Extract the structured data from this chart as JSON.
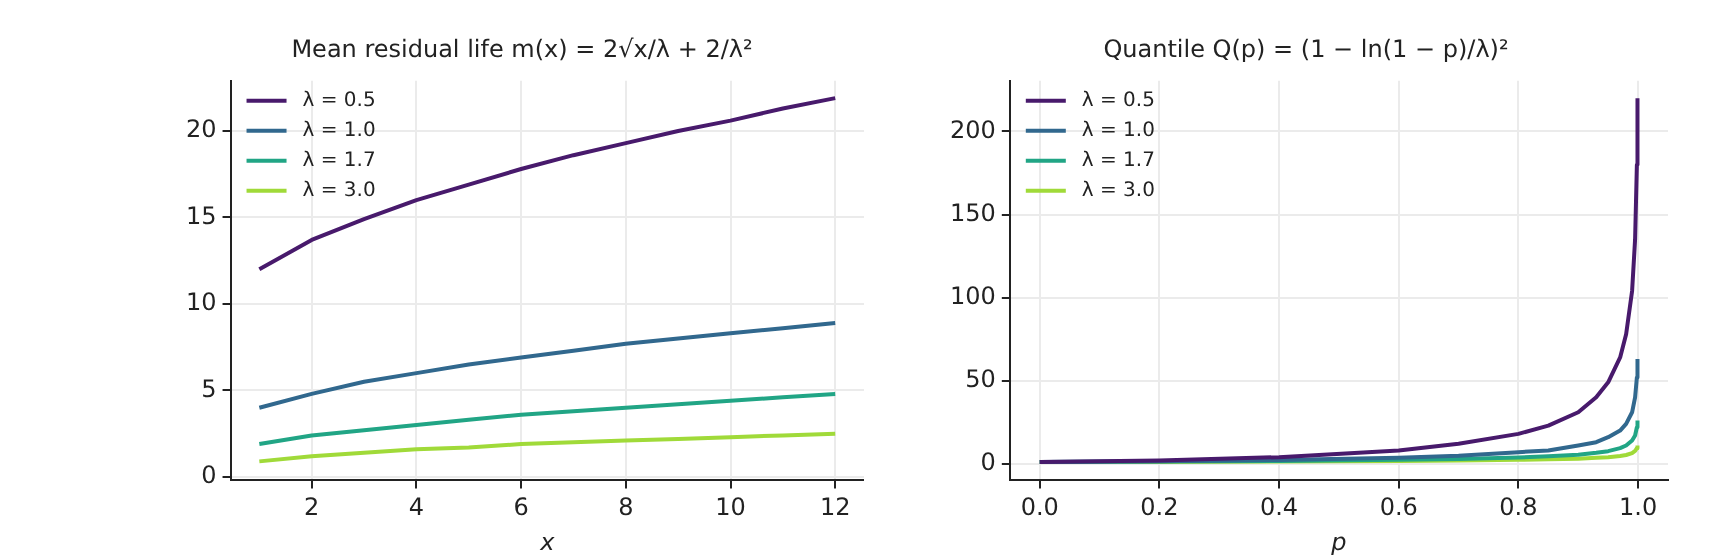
{
  "chart_data": [
    {
      "type": "line",
      "title": "Mean residual life m(x) = 2√x/λ + 2/λ²",
      "xlabel": "x",
      "x": [
        1,
        2,
        3,
        4,
        5,
        6,
        7,
        8,
        9,
        10,
        11,
        12
      ],
      "series": [
        {
          "name": "λ = 0.5",
          "color": "#481a6c",
          "values": [
            12,
            13.7,
            14.9,
            16,
            16.9,
            17.8,
            18.6,
            19.3,
            20,
            20.6,
            21.3,
            21.9
          ]
        },
        {
          "name": "λ = 1.0",
          "color": "#31688e",
          "values": [
            4,
            4.8,
            5.5,
            6,
            6.5,
            6.9,
            7.3,
            7.7,
            8,
            8.3,
            8.6,
            8.9
          ]
        },
        {
          "name": "λ = 1.7",
          "color": "#21a585",
          "values": [
            1.9,
            2.4,
            2.7,
            3,
            3.3,
            3.6,
            3.8,
            4,
            4.2,
            4.4,
            4.6,
            4.8
          ]
        },
        {
          "name": "λ = 3.0",
          "color": "#a0da39",
          "values": [
            0.9,
            1.2,
            1.4,
            1.6,
            1.7,
            1.9,
            2,
            2.1,
            2.2,
            2.3,
            2.4,
            2.5
          ]
        }
      ],
      "xlim": [
        0.45,
        12.55
      ],
      "xticks": [
        2,
        4,
        6,
        8,
        10,
        12
      ],
      "ylim": [
        -0.2,
        22.9
      ],
      "yticks": [
        0,
        5,
        10,
        15,
        20
      ],
      "grid": true,
      "legend": "top left"
    },
    {
      "type": "line",
      "title": "Quantile Q(p) = (1 − ln(1 − p)/λ)²",
      "xlabel": "p",
      "x": [
        0,
        0.2,
        0.4,
        0.6,
        0.7,
        0.8,
        0.85,
        0.9,
        0.93,
        0.95,
        0.97,
        0.98,
        0.99,
        0.995,
        0.998,
        0.999
      ],
      "series": [
        {
          "name": "λ = 0.5",
          "color": "#481a6c",
          "values": [
            1,
            2,
            4,
            8,
            12,
            18,
            23,
            31,
            40,
            49,
            64,
            78,
            104,
            135,
            180,
            220
          ]
        },
        {
          "name": "λ = 1.0",
          "color": "#31688e",
          "values": [
            1,
            1.5,
            2.3,
            3.7,
            4.8,
            7,
            8,
            11,
            13,
            16,
            20,
            24,
            31,
            40,
            52,
            63
          ]
        },
        {
          "name": "λ = 1.7",
          "color": "#21a585",
          "values": [
            1,
            1.3,
            1.7,
            2.4,
            2.9,
            3.8,
            4.5,
            5.5,
            6.6,
            7.6,
            9.4,
            11,
            14,
            17,
            22,
            26
          ]
        },
        {
          "name": "λ = 3.0",
          "color": "#a0da39",
          "values": [
            1,
            1.1,
            1.4,
            1.7,
            2,
            2.4,
            2.7,
            3.1,
            3.6,
            4,
            4.7,
            5.3,
            6.4,
            7.7,
            9.4,
            11
          ]
        }
      ],
      "xlim": [
        -0.05,
        1.05
      ],
      "xticks": [
        {
          "value": 0,
          "label": "0.0"
        },
        {
          "value": 0.2,
          "label": "0.2"
        },
        {
          "value": 0.4,
          "label": "0.4"
        },
        {
          "value": 0.6,
          "label": "0.6"
        },
        {
          "value": 0.8,
          "label": "0.8"
        },
        {
          "value": 1,
          "label": "1.0"
        }
      ],
      "ylim": [
        -10,
        230.5
      ],
      "yticks": [
        0,
        50,
        100,
        150,
        200
      ],
      "grid": true,
      "legend": "top left"
    }
  ]
}
